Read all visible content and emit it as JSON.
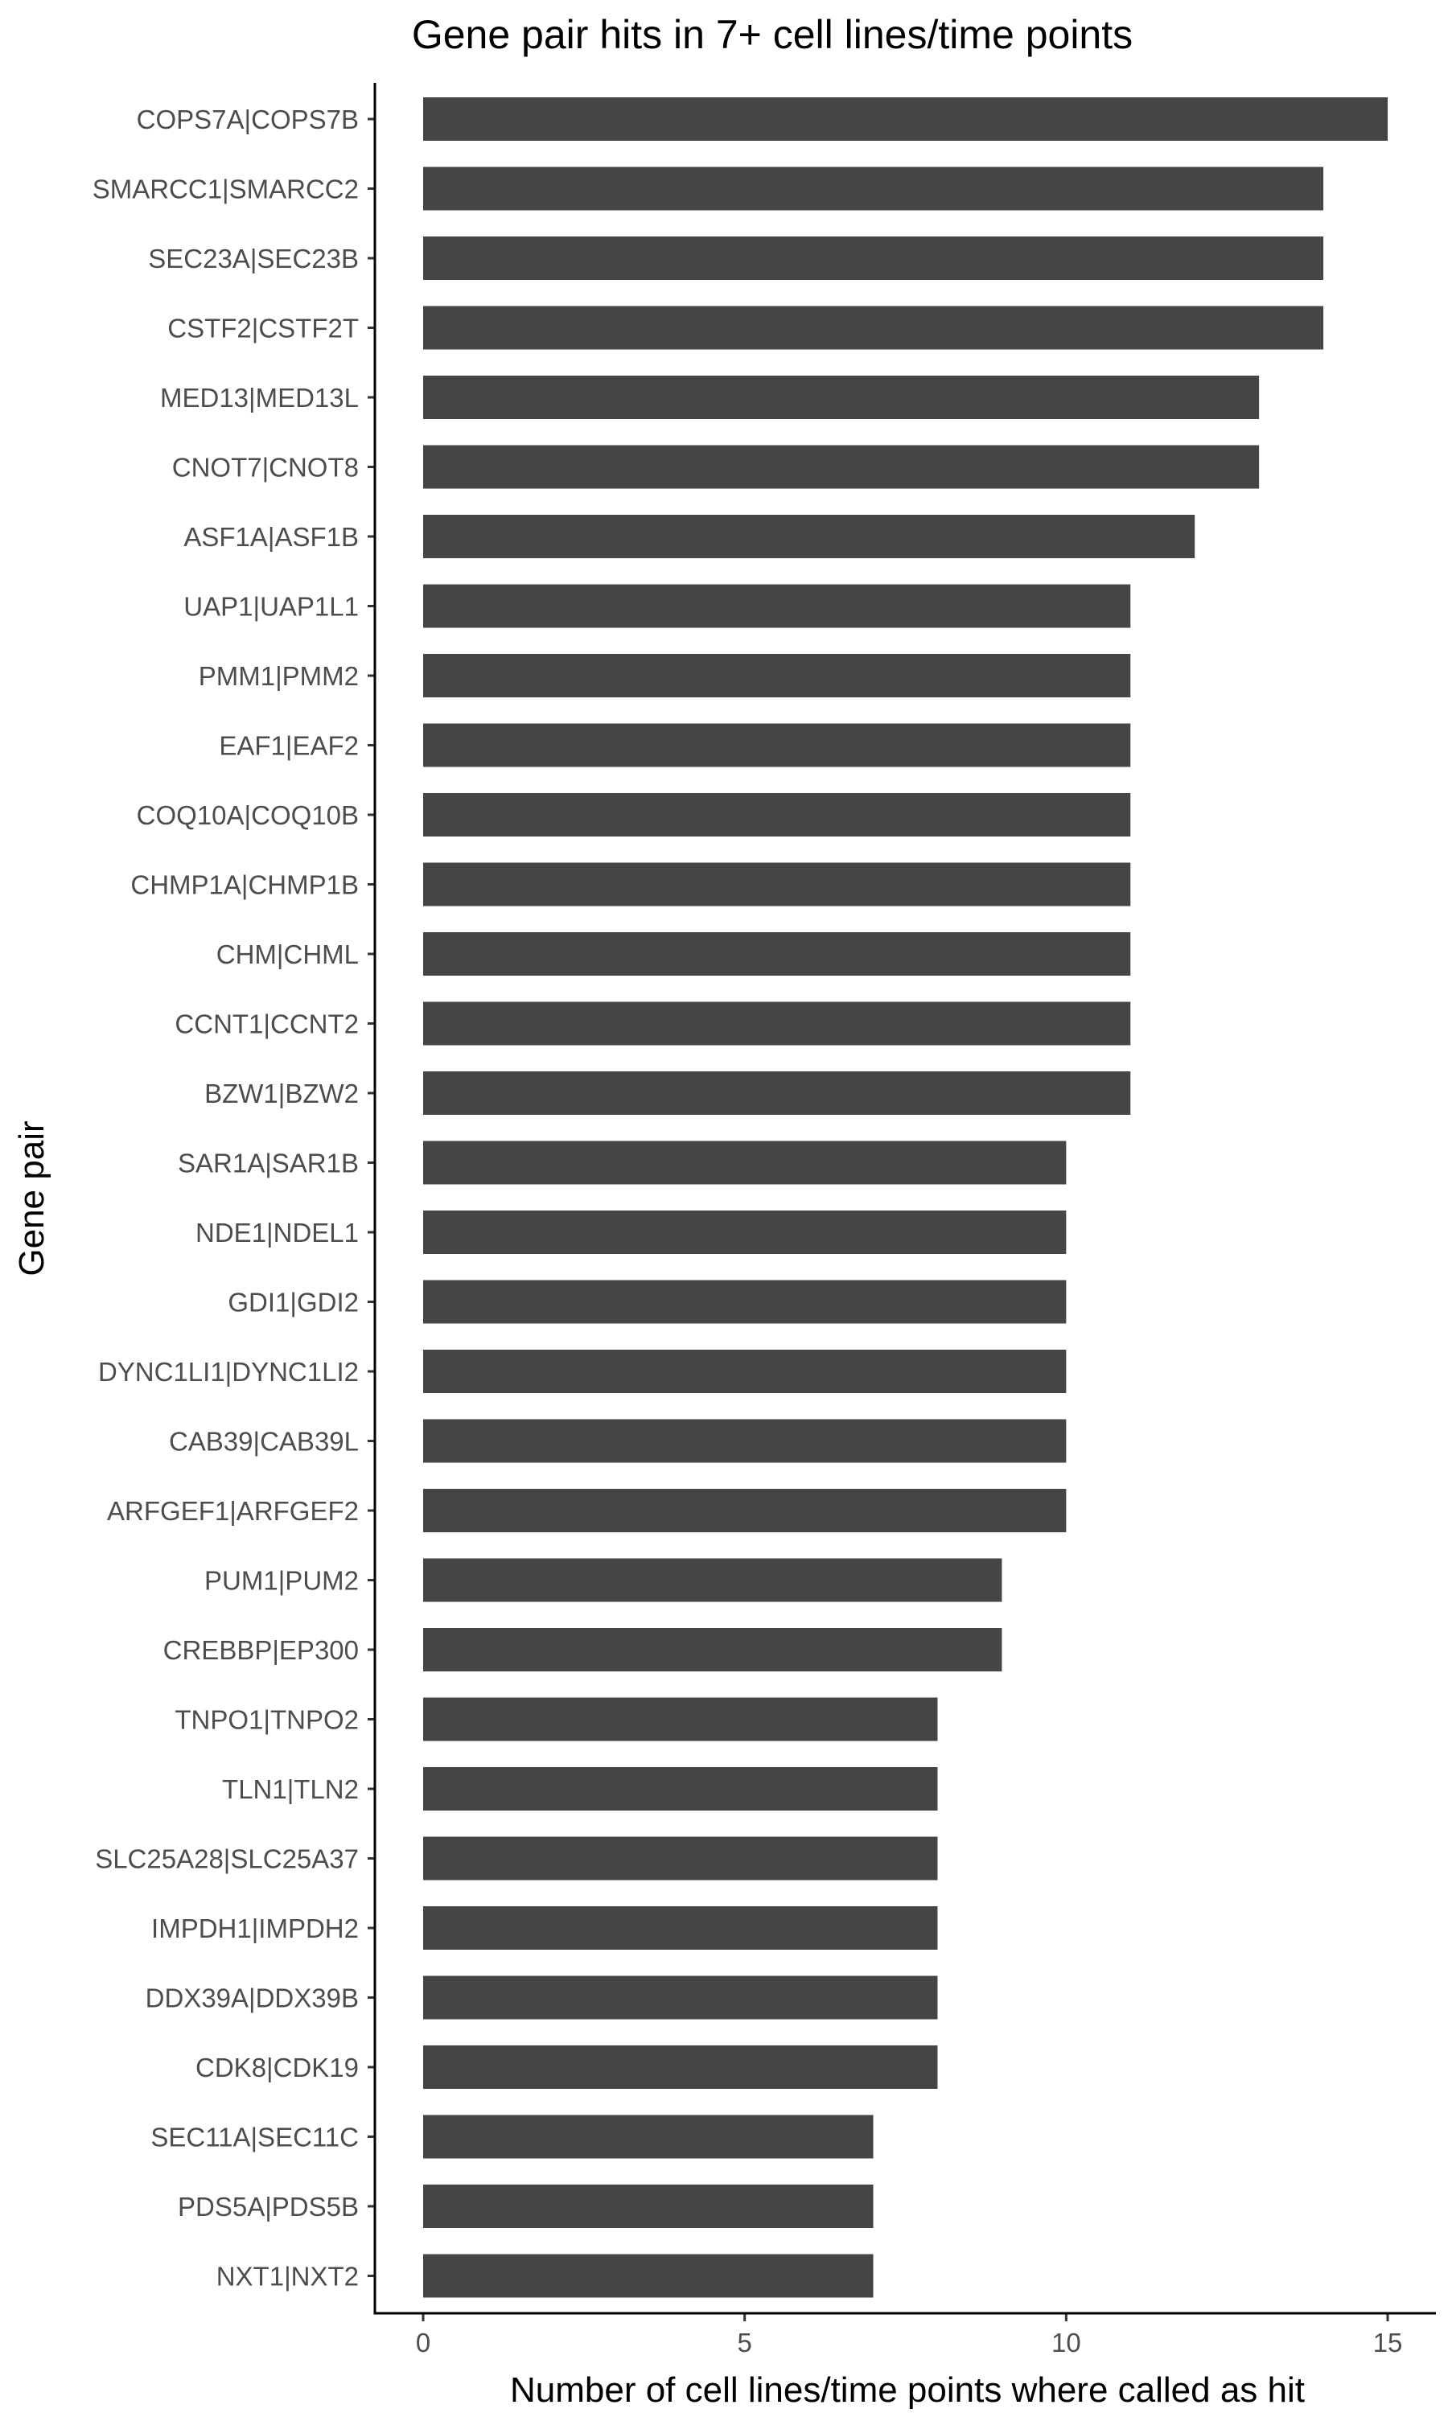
{
  "chart_data": {
    "type": "bar",
    "orientation": "horizontal",
    "title": "Gene pair hits in 7+ cell lines/time points",
    "xlabel": "Number of cell lines/time points where called as hit",
    "ylabel": "Gene pair",
    "xlim": [
      0,
      15
    ],
    "xticks": [
      0,
      5,
      10,
      15
    ],
    "grid": false,
    "bar_color": "#454545",
    "categories": [
      "COPS7A|COPS7B",
      "SMARCC1|SMARCC2",
      "SEC23A|SEC23B",
      "CSTF2|CSTF2T",
      "MED13|MED13L",
      "CNOT7|CNOT8",
      "ASF1A|ASF1B",
      "UAP1|UAP1L1",
      "PMM1|PMM2",
      "EAF1|EAF2",
      "COQ10A|COQ10B",
      "CHMP1A|CHMP1B",
      "CHM|CHML",
      "CCNT1|CCNT2",
      "BZW1|BZW2",
      "SAR1A|SAR1B",
      "NDE1|NDEL1",
      "GDI1|GDI2",
      "DYNC1LI1|DYNC1LI2",
      "CAB39|CAB39L",
      "ARFGEF1|ARFGEF2",
      "PUM1|PUM2",
      "CREBBP|EP300",
      "TNPO1|TNPO2",
      "TLN1|TLN2",
      "SLC25A28|SLC25A37",
      "IMPDH1|IMPDH2",
      "DDX39A|DDX39B",
      "CDK8|CDK19",
      "SEC11A|SEC11C",
      "PDS5A|PDS5B",
      "NXT1|NXT2"
    ],
    "values": [
      15,
      14,
      14,
      14,
      13,
      13,
      12,
      11,
      11,
      11,
      11,
      11,
      11,
      11,
      11,
      10,
      10,
      10,
      10,
      10,
      10,
      9,
      9,
      8,
      8,
      8,
      8,
      8,
      8,
      7,
      7,
      7
    ]
  }
}
